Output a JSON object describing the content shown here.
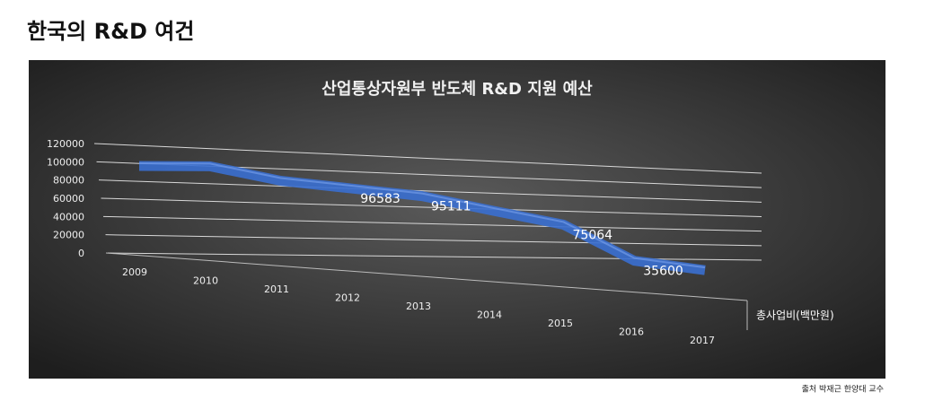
{
  "header": {
    "title": "한국의 R&D 여건"
  },
  "chart_data": {
    "type": "line3d",
    "title": "산업통상자원부 반도체 R&D 지원 예산",
    "categories": [
      "2009",
      "2010",
      "2011",
      "2012",
      "2013",
      "2014",
      "2015",
      "2016",
      "2017"
    ],
    "series": [
      {
        "name": "총사업비(백만원)",
        "color": "#3a6fd0",
        "values": [
          100000,
          107000,
          98000,
          96583,
          95111,
          85000,
          75064,
          35600,
          30000
        ],
        "value_labels": [
          null,
          null,
          null,
          "96583",
          "95111",
          null,
          "75064",
          "35600",
          null
        ]
      }
    ],
    "ylim": [
      0,
      120000
    ],
    "yticks": [
      0,
      20000,
      40000,
      60000,
      80000,
      100000,
      120000
    ],
    "grid": true
  },
  "footer": {
    "source": "출처 박재근 한양대 교수"
  }
}
